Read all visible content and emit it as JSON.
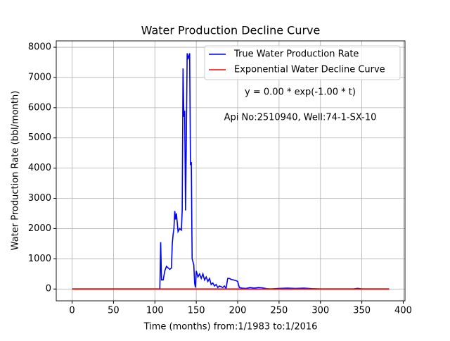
{
  "chart_data": {
    "type": "line",
    "title": "Water Production Decline Curve",
    "xlabel": "Time (months) from:1/1983 to:1/2016",
    "ylabel": "Water Production Rate (bbl/month)",
    "annotations": [
      "y = 0.00 * exp(-1.00 * t)",
      "Api No:2510940, Well:74-1-SX-10"
    ],
    "x": [
      0,
      50,
      100,
      106,
      107,
      108,
      110,
      112,
      114,
      116,
      118,
      120,
      121,
      122,
      123,
      124,
      125,
      126,
      127,
      128,
      130,
      132,
      133,
      134,
      135,
      136,
      137,
      138,
      139,
      140,
      141,
      142,
      143,
      144,
      145,
      147,
      148,
      149,
      150,
      152,
      154,
      156,
      158,
      160,
      162,
      164,
      166,
      168,
      170,
      172,
      174,
      176,
      178,
      180,
      182,
      184,
      186,
      188,
      190,
      192,
      195,
      198,
      200,
      202,
      205,
      210,
      215,
      220,
      225,
      230,
      235,
      240,
      250,
      260,
      270,
      280,
      290,
      300,
      340,
      345,
      350,
      383
    ],
    "series": [
      {
        "name": "True Water Production Rate",
        "color": "#0000ff",
        "values": [
          0,
          0,
          0,
          0,
          1550,
          300,
          300,
          600,
          750,
          700,
          650,
          700,
          1500,
          1800,
          2000,
          2580,
          2300,
          2500,
          2200,
          1900,
          2000,
          1950,
          2600,
          7300,
          5700,
          5900,
          2600,
          5000,
          7800,
          7600,
          7700,
          7800,
          4100,
          4200,
          1000,
          800,
          200,
          50,
          600,
          400,
          500,
          350,
          500,
          300,
          400,
          250,
          350,
          150,
          200,
          100,
          150,
          50,
          100,
          80,
          50,
          100,
          20,
          350,
          350,
          320,
          300,
          280,
          250,
          50,
          30,
          20,
          50,
          30,
          50,
          40,
          10,
          0,
          20,
          30,
          20,
          30,
          10,
          0,
          0,
          20,
          0,
          0
        ]
      },
      {
        "name": "Exponential Water Decline Curve",
        "color": "#ff0000",
        "values": [
          0,
          0,
          0,
          0,
          0,
          0,
          0,
          0,
          0,
          0,
          0,
          0,
          0,
          0,
          0,
          0,
          0,
          0,
          0,
          0,
          0,
          0,
          0,
          0,
          0,
          0,
          0,
          0,
          0,
          0,
          0,
          0,
          0,
          0,
          0,
          0,
          0,
          0,
          0,
          0,
          0,
          0,
          0,
          0,
          0,
          0,
          0,
          0,
          0,
          0,
          0,
          0,
          0,
          0,
          0,
          0,
          0,
          0,
          0,
          0,
          0,
          0,
          0,
          0,
          0,
          0,
          0,
          0,
          0,
          0,
          0,
          0,
          0,
          0,
          0,
          0,
          0,
          0,
          0,
          0,
          0,
          0
        ]
      }
    ],
    "xlim": [
      -19.15,
      402.15
    ],
    "xticks": [
      0,
      50,
      100,
      150,
      200,
      250,
      300,
      350,
      400
    ],
    "ylim": [
      -391,
      8211
    ],
    "yticks": [
      0,
      1000,
      2000,
      3000,
      4000,
      5000,
      6000,
      7000,
      8000
    ],
    "grid": true,
    "legend": "upper right"
  }
}
